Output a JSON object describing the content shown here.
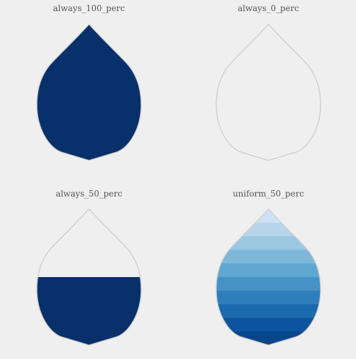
{
  "colors": {
    "background": "#efefef",
    "outline": "#cccccc",
    "dark_fill": "#08306b",
    "title_text": "#555555",
    "blues_ramp": [
      "#cfe1f2",
      "#b7d4ea",
      "#9cc7e0",
      "#7db8da",
      "#5fa6d1",
      "#4692c5",
      "#2f7ebc",
      "#1b69af",
      "#0c559e",
      "#08468c"
    ]
  },
  "chart_data": [
    {
      "type": "drop",
      "title": "always_100_perc",
      "fill_fraction": 1.0,
      "fill_mode": "solid"
    },
    {
      "type": "drop",
      "title": "always_0_perc",
      "fill_fraction": 0.0,
      "fill_mode": "solid"
    },
    {
      "type": "drop",
      "title": "always_50_perc",
      "fill_fraction": 0.5,
      "fill_mode": "solid"
    },
    {
      "type": "drop",
      "title": "uniform_50_perc",
      "fill_fraction": 0.5,
      "fill_mode": "bands",
      "band_count": 10
    }
  ]
}
